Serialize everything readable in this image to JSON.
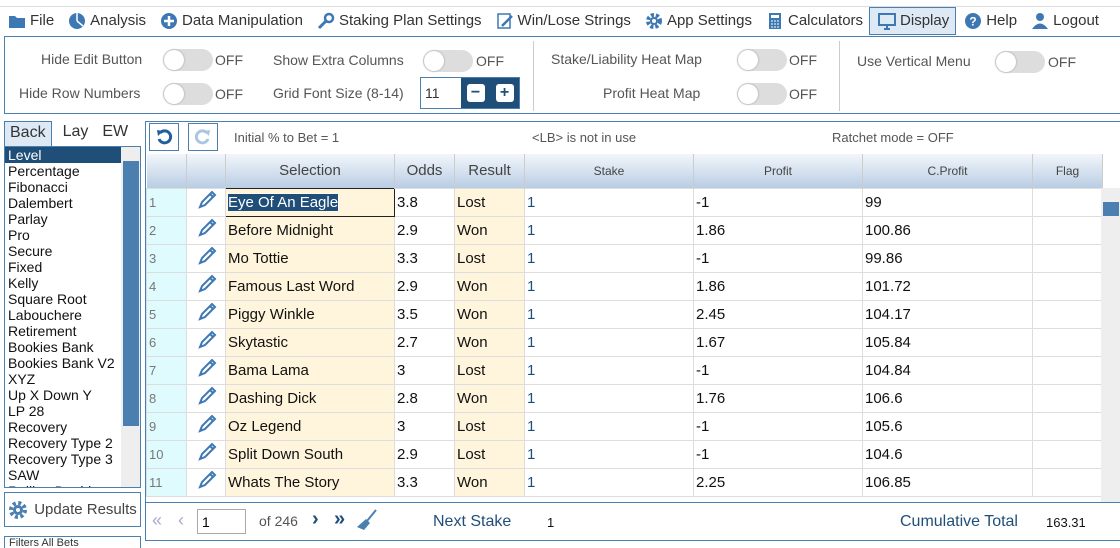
{
  "menu": [
    {
      "label": "File",
      "icon": "folder-icon"
    },
    {
      "label": "Analysis",
      "icon": "pie-chart-icon"
    },
    {
      "label": "Data Manipulation",
      "icon": "plus-circle-icon"
    },
    {
      "label": "Staking Plan Settings",
      "icon": "wrench-icon"
    },
    {
      "label": "Win/Lose Strings",
      "icon": "edit-icon"
    },
    {
      "label": "App Settings",
      "icon": "gear-icon"
    },
    {
      "label": "Calculators",
      "icon": "calculator-icon"
    },
    {
      "label": "Display",
      "icon": "monitor-icon"
    },
    {
      "label": "Help",
      "icon": "question-icon"
    },
    {
      "label": "Logout",
      "icon": "user-icon"
    }
  ],
  "settings": {
    "hide_edit": "Hide Edit Button",
    "hide_rows": "Hide Row Numbers",
    "extra_cols": "Show Extra Columns",
    "font_size": "Grid Font Size (8-14)",
    "font_value": "11",
    "heat_stake": "Stake/Liability Heat Map",
    "heat_profit": "Profit Heat Map",
    "vertical_menu": "Use Vertical Menu",
    "off": "OFF"
  },
  "left": {
    "tabs": [
      "Back",
      "Lay",
      "EW"
    ],
    "plans": [
      "Level",
      "Percentage",
      "Fibonacci",
      "Dalembert",
      "Parlay",
      "Pro",
      "Secure",
      "Fixed",
      "Kelly",
      "Square Root",
      "Labouchere",
      "Retirement",
      "Bookies Bank",
      "Bookies Bank V2",
      "XYZ",
      "Up X Down Y",
      "LP 28",
      "Recovery",
      "Recovery Type 2",
      "Recovery Type 3",
      "SAW",
      "Rolling Doubles"
    ],
    "update": "Update Results",
    "filters": "Filters",
    "filter_value": "All Bets"
  },
  "toolbar": {
    "initial": "Initial % to Bet = 1",
    "lb": "<LB> is not in use",
    "ratchet": "Ratchet mode = OFF"
  },
  "columns": [
    "Selection",
    "Odds",
    "Result",
    "Stake",
    "Profit",
    "C.Profit",
    "Flag"
  ],
  "rows": [
    [
      "1",
      "Eye Of An Eagle",
      "3.8",
      "Lost",
      "1",
      "-1",
      "99"
    ],
    [
      "2",
      "Before Midnight",
      "2.9",
      "Won",
      "1",
      "1.86",
      "100.86"
    ],
    [
      "3",
      "Mo Tottie",
      "3.3",
      "Lost",
      "1",
      "-1",
      "99.86"
    ],
    [
      "4",
      "Famous Last Word",
      "2.9",
      "Won",
      "1",
      "1.86",
      "101.72"
    ],
    [
      "5",
      "Piggy Winkle",
      "3.5",
      "Won",
      "1",
      "2.45",
      "104.17"
    ],
    [
      "6",
      "Skytastic",
      "2.7",
      "Won",
      "1",
      "1.67",
      "105.84"
    ],
    [
      "7",
      "Bama Lama",
      "3",
      "Lost",
      "1",
      "-1",
      "104.84"
    ],
    [
      "8",
      "Dashing Dick",
      "2.8",
      "Won",
      "1",
      "1.76",
      "106.6"
    ],
    [
      "9",
      "Oz Legend",
      "3",
      "Lost",
      "1",
      "-1",
      "105.6"
    ],
    [
      "10",
      "Split Down South",
      "2.9",
      "Lost",
      "1",
      "-1",
      "104.6"
    ],
    [
      "11",
      "Whats The Story",
      "3.3",
      "Won",
      "1",
      "2.25",
      "106.85"
    ]
  ],
  "pager": {
    "page": "1",
    "of": "of 246",
    "next_stake_label": "Next Stake",
    "next_stake": "1",
    "cum_label": "Cumulative Total",
    "cum": "163.31"
  },
  "colors": {
    "accent": "#1f4e79",
    "border": "#4a7fb0"
  }
}
